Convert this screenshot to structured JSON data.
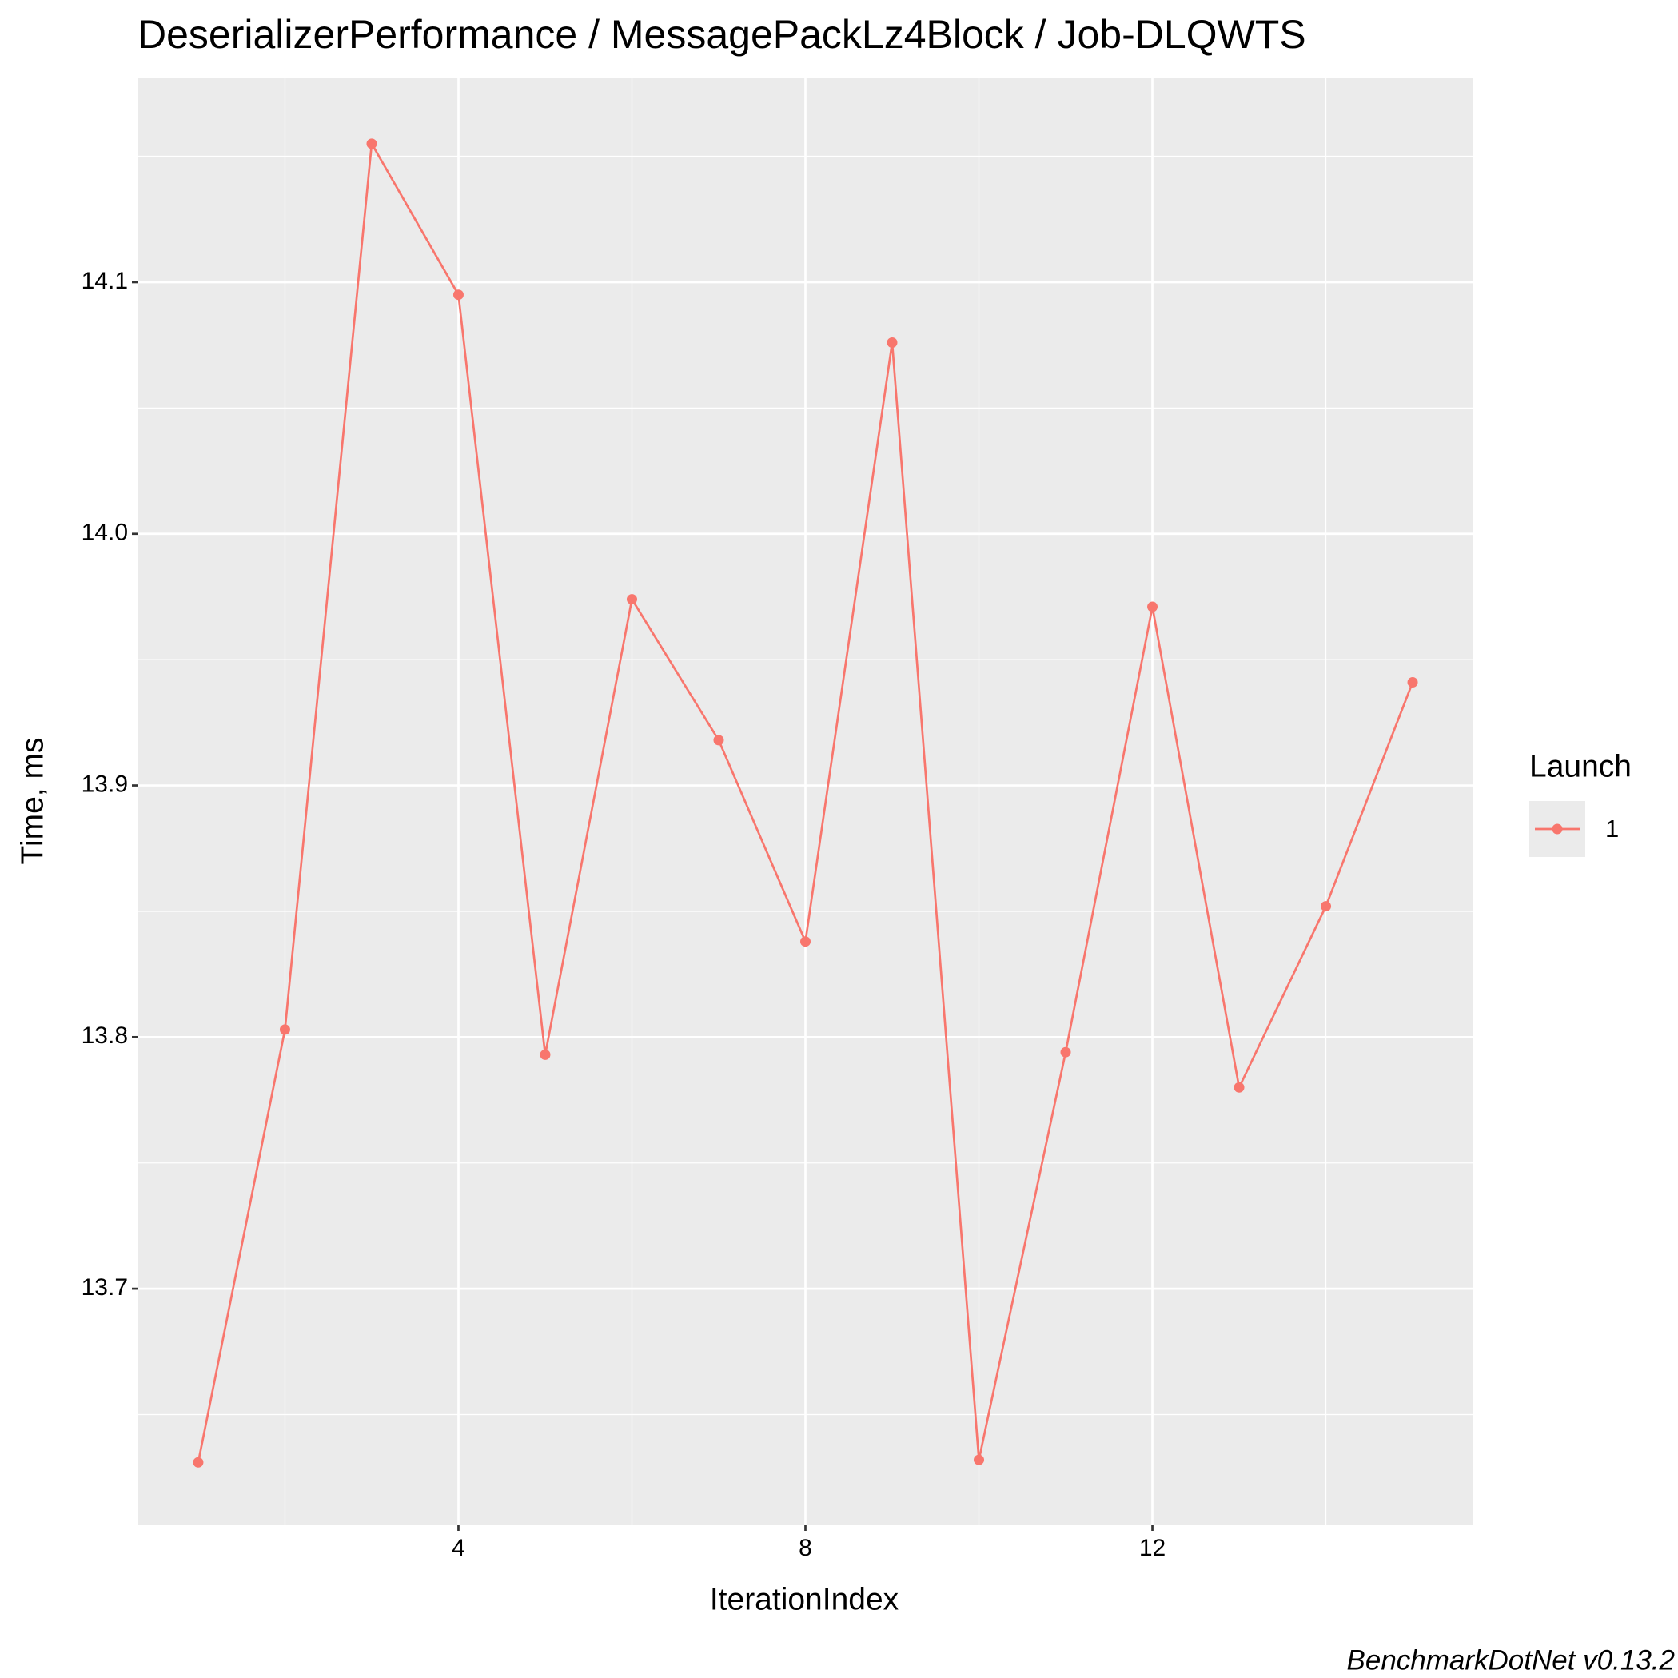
{
  "chart_data": {
    "type": "line",
    "title": "DeserializerPerformance / MessagePackLz4Block / Job-DLQWTS",
    "x_label": "IterationIndex",
    "y_label": "Time, ms",
    "legend_title": "Launch",
    "legend_position": "right",
    "caption": "BenchmarkDotNet v0.13.2",
    "x": [
      1,
      2,
      3,
      4,
      5,
      6,
      7,
      8,
      9,
      10,
      11,
      12,
      13,
      14,
      15
    ],
    "series": [
      {
        "name": "1",
        "color": "#F8766D",
        "values": [
          13.631,
          13.803,
          14.155,
          14.095,
          13.793,
          13.974,
          13.918,
          13.838,
          14.076,
          13.632,
          13.794,
          13.971,
          13.78,
          13.852,
          13.941
        ]
      }
    ],
    "xlim": [
      0.3,
      15.7
    ],
    "xticks": [
      4,
      8,
      12
    ],
    "ylim": [
      13.606,
      14.181
    ],
    "yticks": [
      13.7,
      13.8,
      13.9,
      {
        "value": 14.0,
        "label": "14.0"
      },
      14.1
    ],
    "grid": true,
    "markers": true
  }
}
